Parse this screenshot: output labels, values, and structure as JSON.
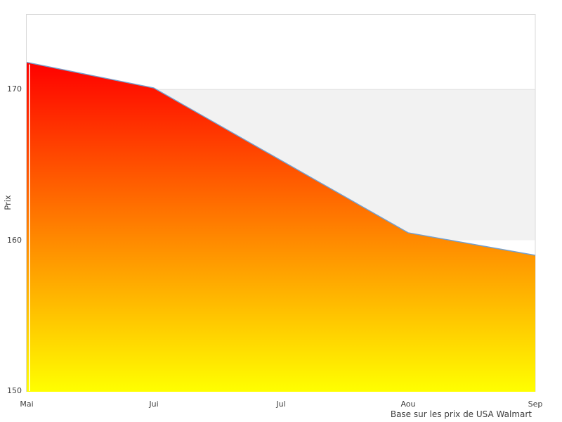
{
  "chart_data": {
    "type": "area",
    "categories": [
      "Mai",
      "Jui",
      "Jul",
      "Aou",
      "Sep"
    ],
    "values": [
      171.8,
      170.1,
      165.3,
      160.5,
      159.0
    ],
    "series_name": "Prix",
    "ylabel": "Prix",
    "ylim": [
      150,
      175
    ],
    "yticks": [
      150,
      160,
      170
    ],
    "grid": false,
    "legend": null,
    "band": {
      "from": 160,
      "to": 170
    },
    "source_note": "Base sur les prix de USA Walmart",
    "colors": {
      "area_gradient_top": "#ff0000",
      "area_gradient_bottom": "#ffff00",
      "line": "#74a0ce",
      "band_fill": "#f2f2f2",
      "band_edge": "#e0e0e0",
      "plot_border": "#d9d9d9",
      "tick_text": "#3d3d3d",
      "background": "#ffffff"
    }
  }
}
